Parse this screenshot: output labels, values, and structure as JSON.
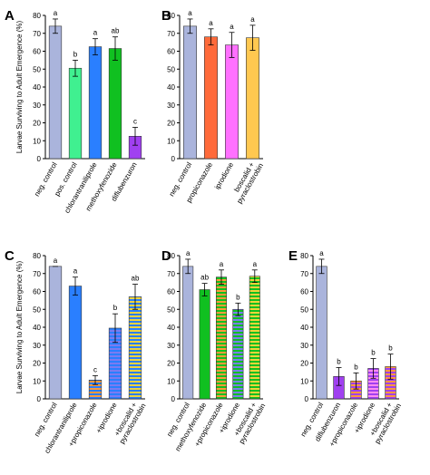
{
  "y_axis_label": "Larvae Surviving to Adult Emergence (%)",
  "pattern_colors": {
    "blue_hatch": "#7b7bf0",
    "green_hatch": "#a6a600",
    "yellow_hatch": "#f0d43a",
    "magenta_hatch": "#ff8cf0"
  },
  "chart_data": [
    {
      "panel": "A",
      "type": "bar",
      "ylim": [
        0,
        80
      ],
      "yticks": [
        0,
        10,
        20,
        30,
        40,
        50,
        60,
        70,
        80
      ],
      "ylabel": "Larvae Surviving to Adult Emergence (%)",
      "categories": [
        "neg. control",
        "pos. control",
        "chlorantraniliprole",
        "methoxyfenozide",
        "diflubenzuron"
      ],
      "values": [
        74,
        50.5,
        62.5,
        61.5,
        12.5
      ],
      "errors": [
        4,
        4.5,
        4.5,
        6.5,
        5
      ],
      "letters": [
        "a",
        "b",
        "a",
        "ab",
        "c"
      ],
      "colors": [
        "#aab4dc",
        "#40f090",
        "#2a7fff",
        "#10c020",
        "#a040f0"
      ],
      "patterns": [
        "none",
        "none",
        "none",
        "none",
        "none"
      ]
    },
    {
      "panel": "B",
      "type": "bar",
      "ylim": [
        0,
        80
      ],
      "yticks": [
        0,
        10,
        20,
        30,
        40,
        50,
        60,
        70,
        80
      ],
      "categories": [
        "neg. control",
        "propiconazole",
        "iprodione",
        "boscalid +\npyraclostrobin"
      ],
      "values": [
        74,
        68,
        63.5,
        67.5
      ],
      "errors": [
        4,
        4.5,
        7,
        7
      ],
      "letters": [
        "a",
        "a",
        "a",
        "a"
      ],
      "colors": [
        "#aab4dc",
        "#ff6a3a",
        "#ff70ff",
        "#ffc850"
      ],
      "patterns": [
        "none",
        "none",
        "none",
        "none"
      ]
    },
    {
      "panel": "C",
      "type": "bar",
      "ylim": [
        0,
        80
      ],
      "yticks": [
        0,
        10,
        20,
        30,
        40,
        50,
        60,
        70,
        80
      ],
      "ylabel": "Larvae Surviving to Adult Emergence (%)",
      "categories": [
        "neg. control",
        "chlorantraniliprole",
        "+propiconazole",
        "+iprodione",
        "+boscalid +\npyraclostrobin"
      ],
      "values": [
        74,
        63,
        10.5,
        39.5,
        57
      ],
      "errors": [
        0,
        5,
        2.5,
        8,
        7
      ],
      "letters": [
        "a",
        "a",
        "c",
        "b",
        "ab"
      ],
      "colors": [
        "#aab4dc",
        "#2a7fff",
        "#2a7fff",
        "#2a7fff",
        "#2a7fff"
      ],
      "patterns": [
        "none",
        "none",
        "orange",
        "purple",
        "yellow"
      ]
    },
    {
      "panel": "D",
      "type": "bar",
      "ylim": [
        0,
        80
      ],
      "yticks": [
        0,
        10,
        20,
        30,
        40,
        50,
        60,
        70,
        80
      ],
      "categories": [
        "neg. control",
        "methoxyfenozide",
        "+propiconazole",
        "+iprodione",
        "+boscalid +\npyraclostrobin"
      ],
      "values": [
        74,
        61,
        68,
        50,
        68.5
      ],
      "errors": [
        4,
        3.5,
        4,
        3.5,
        3.5
      ],
      "letters": [
        "a",
        "ab",
        "a",
        "b",
        "a"
      ],
      "colors": [
        "#aab4dc",
        "#10c020",
        "#10c020",
        "#10c020",
        "#10c020"
      ],
      "patterns": [
        "none",
        "none",
        "orange",
        "purple",
        "yellow"
      ]
    },
    {
      "panel": "E",
      "type": "bar",
      "ylim": [
        0,
        80
      ],
      "yticks": [
        0,
        10,
        20,
        30,
        40,
        50,
        60,
        70,
        80
      ],
      "categories": [
        "neg. control",
        "diflubenzuron",
        "+propiconazole",
        "+iprodione",
        "+boscalid +\npyraclostrobin"
      ],
      "values": [
        74,
        12.5,
        10,
        17,
        18
      ],
      "errors": [
        4,
        5,
        4.5,
        5.5,
        7
      ],
      "letters": [
        "a",
        "b",
        "b",
        "b",
        "b"
      ],
      "colors": [
        "#aab4dc",
        "#a040f0",
        "#a040f0",
        "#a040f0",
        "#a040f0"
      ],
      "patterns": [
        "none",
        "none",
        "orange",
        "pink",
        "orange"
      ]
    }
  ]
}
